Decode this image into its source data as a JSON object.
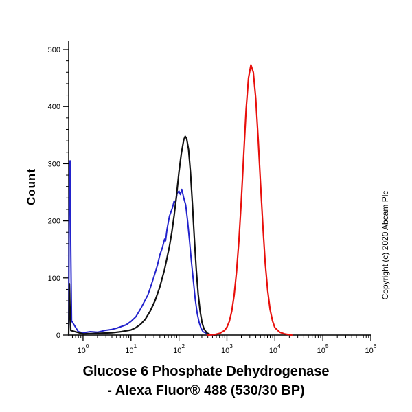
{
  "title": {
    "line1": "Glucose 6 Phosphate Dehydrogenase",
    "line2": "- Alexa Fluor® 488 (530/30 BP)"
  },
  "copyright": "Copyright (c) 2020 Abcam Plc",
  "chart_data": {
    "type": "line",
    "subtype": "flow-cytometry-histogram",
    "title": "Glucose 6 Phosphate Dehydrogenase - Alexa Fluor® 488 (530/30 BP)",
    "xlabel": "",
    "ylabel": "Count",
    "x_scale": "log10",
    "xlim_log": [
      -0.3,
      6
    ],
    "ylim": [
      0,
      500
    ],
    "y_ticks": [
      0,
      100,
      200,
      300,
      400,
      500
    ],
    "y_minor_step": 20,
    "x_ticks_exponents": [
      0,
      1,
      2,
      3,
      4,
      5,
      6
    ],
    "grid": false,
    "legend": "none",
    "axis_color": "#000000",
    "series": [
      {
        "id": "blue-curve",
        "name": "blue curve (peak ~255 counts at ~1x10^2)",
        "color": "#2222cc",
        "width": 2,
        "points": [
          [
            -0.3,
            0
          ],
          [
            -0.285,
            300
          ],
          [
            -0.27,
            305
          ],
          [
            -0.255,
            150
          ],
          [
            -0.24,
            25
          ],
          [
            -0.1,
            6
          ],
          [
            0.0,
            4
          ],
          [
            0.15,
            6
          ],
          [
            0.3,
            5
          ],
          [
            0.45,
            8
          ],
          [
            0.6,
            10
          ],
          [
            0.7,
            12
          ],
          [
            0.8,
            15
          ],
          [
            0.9,
            18
          ],
          [
            1.0,
            24
          ],
          [
            1.1,
            32
          ],
          [
            1.2,
            46
          ],
          [
            1.3,
            62
          ],
          [
            1.35,
            70
          ],
          [
            1.4,
            82
          ],
          [
            1.45,
            95
          ],
          [
            1.5,
            108
          ],
          [
            1.55,
            122
          ],
          [
            1.6,
            140
          ],
          [
            1.65,
            152
          ],
          [
            1.7,
            168
          ],
          [
            1.72,
            165
          ],
          [
            1.75,
            185
          ],
          [
            1.8,
            208
          ],
          [
            1.83,
            215
          ],
          [
            1.86,
            222
          ],
          [
            1.9,
            235
          ],
          [
            1.93,
            230
          ],
          [
            1.96,
            248
          ],
          [
            2.0,
            252
          ],
          [
            2.03,
            246
          ],
          [
            2.06,
            255
          ],
          [
            2.1,
            240
          ],
          [
            2.14,
            228
          ],
          [
            2.18,
            200
          ],
          [
            2.22,
            165
          ],
          [
            2.26,
            128
          ],
          [
            2.3,
            95
          ],
          [
            2.34,
            62
          ],
          [
            2.38,
            38
          ],
          [
            2.42,
            22
          ],
          [
            2.46,
            12
          ],
          [
            2.5,
            6
          ],
          [
            2.6,
            2
          ],
          [
            2.7,
            0
          ]
        ]
      },
      {
        "id": "black-curve",
        "name": "black curve (peak ~348 counts at ~1.3x10^2)",
        "color": "#111111",
        "width": 2.2,
        "points": [
          [
            -0.3,
            0
          ],
          [
            -0.285,
            90
          ],
          [
            -0.27,
            40
          ],
          [
            -0.255,
            8
          ],
          [
            0.0,
            2
          ],
          [
            0.3,
            3
          ],
          [
            0.6,
            4
          ],
          [
            0.8,
            6
          ],
          [
            1.0,
            9
          ],
          [
            1.1,
            13
          ],
          [
            1.2,
            19
          ],
          [
            1.3,
            28
          ],
          [
            1.4,
            42
          ],
          [
            1.5,
            60
          ],
          [
            1.6,
            84
          ],
          [
            1.7,
            115
          ],
          [
            1.8,
            155
          ],
          [
            1.85,
            180
          ],
          [
            1.9,
            210
          ],
          [
            1.95,
            245
          ],
          [
            2.0,
            285
          ],
          [
            2.05,
            318
          ],
          [
            2.1,
            342
          ],
          [
            2.13,
            348
          ],
          [
            2.16,
            344
          ],
          [
            2.2,
            325
          ],
          [
            2.24,
            285
          ],
          [
            2.28,
            230
          ],
          [
            2.32,
            170
          ],
          [
            2.36,
            115
          ],
          [
            2.4,
            72
          ],
          [
            2.44,
            42
          ],
          [
            2.48,
            22
          ],
          [
            2.52,
            11
          ],
          [
            2.58,
            4
          ],
          [
            2.65,
            1
          ],
          [
            2.75,
            0
          ]
        ]
      },
      {
        "id": "red-curve",
        "name": "red curve (peak ~473 counts at ~3x10^3)",
        "color": "#e8100c",
        "width": 2.2,
        "points": [
          [
            2.6,
            0
          ],
          [
            2.75,
            1
          ],
          [
            2.85,
            3
          ],
          [
            2.95,
            8
          ],
          [
            3.0,
            14
          ],
          [
            3.05,
            24
          ],
          [
            3.1,
            42
          ],
          [
            3.15,
            70
          ],
          [
            3.2,
            110
          ],
          [
            3.25,
            165
          ],
          [
            3.3,
            235
          ],
          [
            3.35,
            315
          ],
          [
            3.4,
            395
          ],
          [
            3.45,
            450
          ],
          [
            3.5,
            473
          ],
          [
            3.55,
            460
          ],
          [
            3.6,
            415
          ],
          [
            3.65,
            345
          ],
          [
            3.7,
            265
          ],
          [
            3.75,
            190
          ],
          [
            3.8,
            125
          ],
          [
            3.85,
            78
          ],
          [
            3.9,
            45
          ],
          [
            3.95,
            25
          ],
          [
            4.0,
            13
          ],
          [
            4.1,
            5
          ],
          [
            4.2,
            2
          ],
          [
            4.35,
            0
          ]
        ]
      }
    ]
  }
}
